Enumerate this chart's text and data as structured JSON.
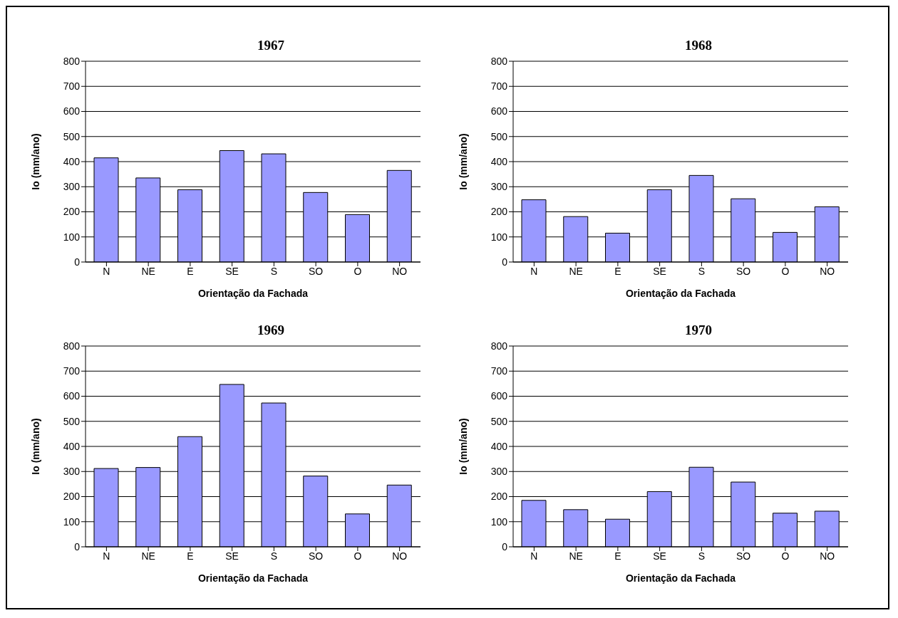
{
  "chart_data": [
    {
      "type": "bar",
      "title": "1967",
      "xlabel": "Orientação da Fachada",
      "ylabel": "Io (mm/ano)",
      "categories": [
        "N",
        "NE",
        "E",
        "SE",
        "S",
        "SO",
        "O",
        "NO"
      ],
      "values": [
        415,
        335,
        288,
        444,
        431,
        277,
        189,
        365
      ],
      "color": "#9999ff",
      "ylim": [
        0,
        800
      ],
      "yticks": [
        0,
        100,
        200,
        300,
        400,
        500,
        600,
        700,
        800
      ],
      "grid": "y",
      "legend": false
    },
    {
      "type": "bar",
      "title": "1968",
      "xlabel": "Orientação da Fachada",
      "ylabel": "Io (mm/ano)",
      "categories": [
        "N",
        "NE",
        "E",
        "SE",
        "S",
        "SO",
        "O",
        "NO"
      ],
      "values": [
        248,
        181,
        115,
        288,
        345,
        252,
        118,
        220
      ],
      "color": "#9999ff",
      "ylim": [
        0,
        800
      ],
      "yticks": [
        0,
        100,
        200,
        300,
        400,
        500,
        600,
        700,
        800
      ],
      "grid": "y",
      "legend": false
    },
    {
      "type": "bar",
      "title": "1969",
      "xlabel": "Orientação da Fachada",
      "ylabel": "Io (mm/ano)",
      "categories": [
        "N",
        "NE",
        "E",
        "SE",
        "S",
        "SO",
        "O",
        "NO"
      ],
      "values": [
        312,
        316,
        439,
        647,
        573,
        282,
        131,
        246
      ],
      "color": "#9999ff",
      "ylim": [
        0,
        800
      ],
      "yticks": [
        0,
        100,
        200,
        300,
        400,
        500,
        600,
        700,
        800
      ],
      "grid": "y",
      "legend": false
    },
    {
      "type": "bar",
      "title": "1970",
      "xlabel": "Orientação da Fachada",
      "ylabel": "Io (mm/ano)",
      "categories": [
        "N",
        "NE",
        "E",
        "SE",
        "S",
        "SO",
        "O",
        "NO"
      ],
      "values": [
        185,
        148,
        110,
        220,
        317,
        258,
        134,
        142
      ],
      "color": "#9999ff",
      "ylim": [
        0,
        800
      ],
      "yticks": [
        0,
        100,
        200,
        300,
        400,
        500,
        600,
        700,
        800
      ],
      "grid": "y",
      "legend": false
    }
  ]
}
